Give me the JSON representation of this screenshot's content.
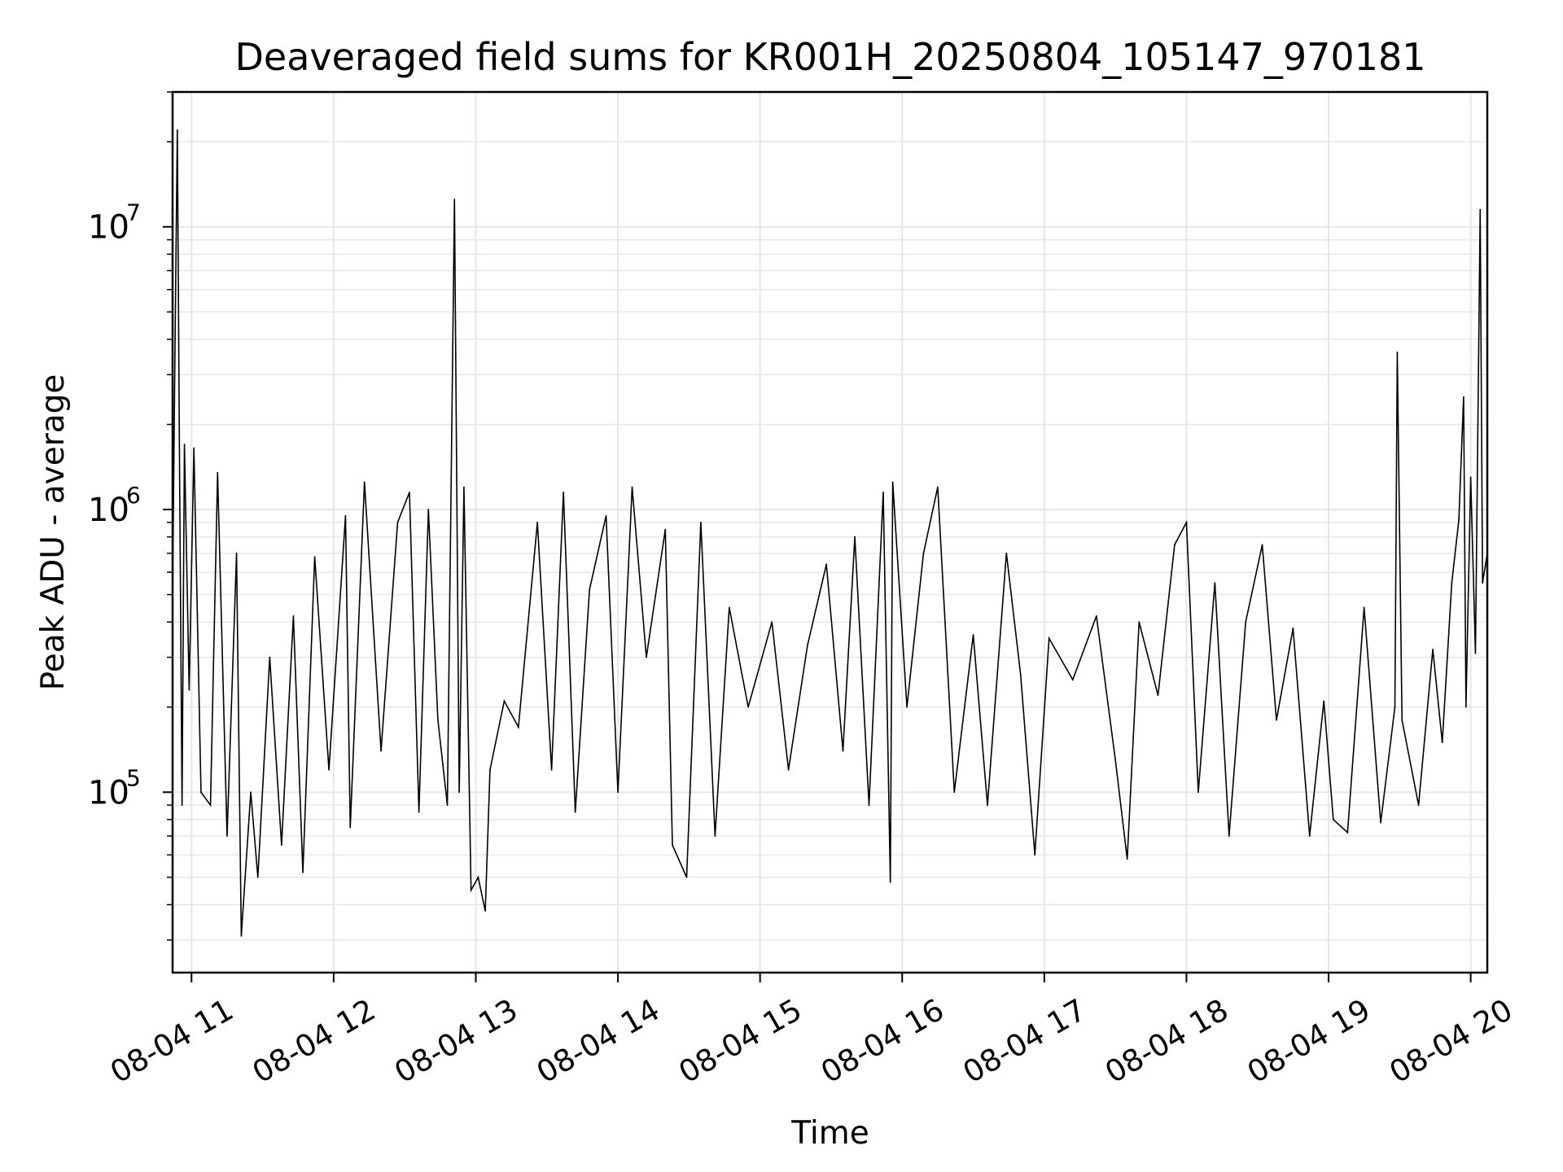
{
  "chart_data": {
    "type": "line",
    "title": "Deaveraged field sums for KR001H_20250804_105147_970181",
    "xlabel": "Time",
    "ylabel": "Peak ADU - average",
    "yscale": "log",
    "ylim": [
      23000,
      30000000
    ],
    "xlim": [
      "2025-08-04T10:52",
      "2025-08-04T20:07"
    ],
    "grid": true,
    "line_color": "#000000",
    "grid_color": "#e6e6e6",
    "x_ticks": [
      "08-04 11",
      "08-04 12",
      "08-04 13",
      "08-04 14",
      "08-04 15",
      "08-04 16",
      "08-04 17",
      "08-04 18",
      "08-04 19",
      "08-04 20"
    ],
    "x_tick_values": [
      "2025-08-04T11:00",
      "2025-08-04T12:00",
      "2025-08-04T13:00",
      "2025-08-04T14:00",
      "2025-08-04T15:00",
      "2025-08-04T16:00",
      "2025-08-04T17:00",
      "2025-08-04T18:00",
      "2025-08-04T19:00",
      "2025-08-04T20:00"
    ],
    "y_ticks": [
      {
        "value": 100000,
        "base": "10",
        "exp": "5"
      },
      {
        "value": 1000000,
        "base": "10",
        "exp": "6"
      },
      {
        "value": 10000000,
        "base": "10",
        "exp": "7"
      }
    ],
    "series": [
      {
        "sampling": "approximately one point per 2 minutes, values read off the plot",
        "points": [
          [
            "2025-08-04T10:52",
            500000
          ],
          [
            "2025-08-04T10:53",
            3600000
          ],
          [
            "2025-08-04T10:54",
            22000000
          ],
          [
            "2025-08-04T10:55",
            1200000
          ],
          [
            "2025-08-04T10:56",
            90000
          ],
          [
            "2025-08-04T10:57",
            1700000
          ],
          [
            "2025-08-04T10:59",
            230000
          ],
          [
            "2025-08-04T11:01",
            1650000
          ],
          [
            "2025-08-04T11:04",
            100000
          ],
          [
            "2025-08-04T11:08",
            90000
          ],
          [
            "2025-08-04T11:11",
            1350000
          ],
          [
            "2025-08-04T11:15",
            70000
          ],
          [
            "2025-08-04T11:19",
            700000
          ],
          [
            "2025-08-04T11:21",
            31000
          ],
          [
            "2025-08-04T11:25",
            100000
          ],
          [
            "2025-08-04T11:28",
            50000
          ],
          [
            "2025-08-04T11:33",
            300000
          ],
          [
            "2025-08-04T11:38",
            65000
          ],
          [
            "2025-08-04T11:43",
            420000
          ],
          [
            "2025-08-04T11:47",
            52000
          ],
          [
            "2025-08-04T11:52",
            680000
          ],
          [
            "2025-08-04T11:58",
            120000
          ],
          [
            "2025-08-04T12:05",
            950000
          ],
          [
            "2025-08-04T12:07",
            75000
          ],
          [
            "2025-08-04T12:13",
            1250000
          ],
          [
            "2025-08-04T12:20",
            140000
          ],
          [
            "2025-08-04T12:27",
            900000
          ],
          [
            "2025-08-04T12:32",
            1150000
          ],
          [
            "2025-08-04T12:36",
            85000
          ],
          [
            "2025-08-04T12:40",
            1000000
          ],
          [
            "2025-08-04T12:44",
            180000
          ],
          [
            "2025-08-04T12:48",
            90000
          ],
          [
            "2025-08-04T12:51",
            12500000
          ],
          [
            "2025-08-04T12:53",
            100000
          ],
          [
            "2025-08-04T12:55",
            1200000
          ],
          [
            "2025-08-04T12:58",
            45000
          ],
          [
            "2025-08-04T13:01",
            50000
          ],
          [
            "2025-08-04T13:04",
            38000
          ],
          [
            "2025-08-04T13:06",
            120000
          ],
          [
            "2025-08-04T13:12",
            210000
          ],
          [
            "2025-08-04T13:18",
            170000
          ],
          [
            "2025-08-04T13:26",
            900000
          ],
          [
            "2025-08-04T13:32",
            120000
          ],
          [
            "2025-08-04T13:37",
            1150000
          ],
          [
            "2025-08-04T13:42",
            85000
          ],
          [
            "2025-08-04T13:48",
            520000
          ],
          [
            "2025-08-04T13:55",
            950000
          ],
          [
            "2025-08-04T14:00",
            100000
          ],
          [
            "2025-08-04T14:06",
            1200000
          ],
          [
            "2025-08-04T14:12",
            300000
          ],
          [
            "2025-08-04T14:20",
            850000
          ],
          [
            "2025-08-04T14:23",
            65000
          ],
          [
            "2025-08-04T14:29",
            50000
          ],
          [
            "2025-08-04T14:35",
            900000
          ],
          [
            "2025-08-04T14:41",
            70000
          ],
          [
            "2025-08-04T14:47",
            450000
          ],
          [
            "2025-08-04T14:55",
            200000
          ],
          [
            "2025-08-04T15:05",
            400000
          ],
          [
            "2025-08-04T15:12",
            120000
          ],
          [
            "2025-08-04T15:20",
            330000
          ],
          [
            "2025-08-04T15:28",
            640000
          ],
          [
            "2025-08-04T15:35",
            140000
          ],
          [
            "2025-08-04T15:40",
            800000
          ],
          [
            "2025-08-04T15:46",
            90000
          ],
          [
            "2025-08-04T15:52",
            1150000
          ],
          [
            "2025-08-04T15:55",
            48000
          ],
          [
            "2025-08-04T15:56",
            1250000
          ],
          [
            "2025-08-04T16:02",
            200000
          ],
          [
            "2025-08-04T16:09",
            700000
          ],
          [
            "2025-08-04T16:15",
            1200000
          ],
          [
            "2025-08-04T16:22",
            100000
          ],
          [
            "2025-08-04T16:30",
            360000
          ],
          [
            "2025-08-04T16:36",
            90000
          ],
          [
            "2025-08-04T16:44",
            700000
          ],
          [
            "2025-08-04T16:50",
            260000
          ],
          [
            "2025-08-04T16:56",
            60000
          ],
          [
            "2025-08-04T17:02",
            350000
          ],
          [
            "2025-08-04T17:12",
            250000
          ],
          [
            "2025-08-04T17:22",
            420000
          ],
          [
            "2025-08-04T17:30",
            130000
          ],
          [
            "2025-08-04T17:35",
            58000
          ],
          [
            "2025-08-04T17:40",
            400000
          ],
          [
            "2025-08-04T17:48",
            220000
          ],
          [
            "2025-08-04T17:55",
            750000
          ],
          [
            "2025-08-04T18:00",
            900000
          ],
          [
            "2025-08-04T18:05",
            100000
          ],
          [
            "2025-08-04T18:12",
            550000
          ],
          [
            "2025-08-04T18:18",
            70000
          ],
          [
            "2025-08-04T18:25",
            400000
          ],
          [
            "2025-08-04T18:32",
            750000
          ],
          [
            "2025-08-04T18:38",
            180000
          ],
          [
            "2025-08-04T18:45",
            380000
          ],
          [
            "2025-08-04T18:52",
            70000
          ],
          [
            "2025-08-04T18:58",
            210000
          ],
          [
            "2025-08-04T19:02",
            80000
          ],
          [
            "2025-08-04T19:08",
            72000
          ],
          [
            "2025-08-04T19:15",
            450000
          ],
          [
            "2025-08-04T19:22",
            78000
          ],
          [
            "2025-08-04T19:28",
            200000
          ],
          [
            "2025-08-04T19:29",
            3600000
          ],
          [
            "2025-08-04T19:31",
            180000
          ],
          [
            "2025-08-04T19:38",
            90000
          ],
          [
            "2025-08-04T19:44",
            320000
          ],
          [
            "2025-08-04T19:48",
            150000
          ],
          [
            "2025-08-04T19:52",
            550000
          ],
          [
            "2025-08-04T19:55",
            920000
          ],
          [
            "2025-08-04T19:57",
            2500000
          ],
          [
            "2025-08-04T19:58",
            200000
          ],
          [
            "2025-08-04T20:00",
            1300000
          ],
          [
            "2025-08-04T20:02",
            310000
          ],
          [
            "2025-08-04T20:04",
            11500000
          ],
          [
            "2025-08-04T20:05",
            550000
          ],
          [
            "2025-08-04T20:07",
            700000
          ]
        ]
      }
    ]
  }
}
